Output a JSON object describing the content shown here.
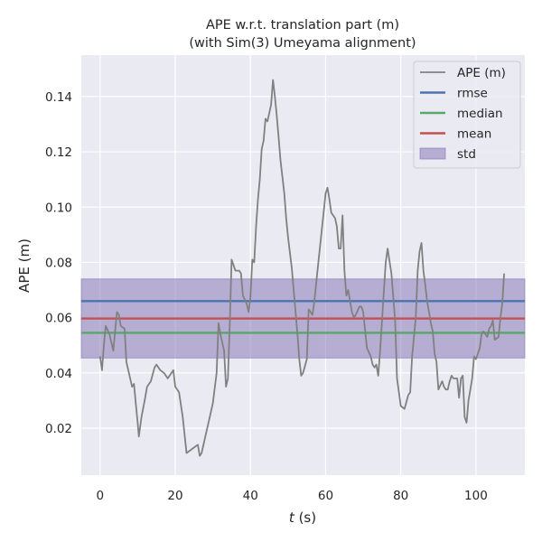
{
  "chart_data": {
    "type": "line",
    "title_line1": "APE w.r.t. translation part (m)",
    "title_line2": "(with Sim(3) Umeyama alignment)",
    "xlabel_italic": "t",
    "xlabel_rest": " (s)",
    "ylabel": "APE (m)",
    "xlim": [
      -5,
      113
    ],
    "ylim": [
      0.003,
      0.155
    ],
    "xticks": [
      0,
      20,
      40,
      60,
      80,
      100
    ],
    "yticks": [
      0.02,
      0.04,
      0.06,
      0.08,
      0.1,
      0.12,
      0.14
    ],
    "ytick_labels": [
      "0.02",
      "0.04",
      "0.06",
      "0.08",
      "0.10",
      "0.12",
      "0.14"
    ],
    "legend_position": "upper right",
    "grid": true,
    "series": [
      {
        "name": "APE (m)",
        "color": "#808080",
        "points": [
          [
            0,
            0.046
          ],
          [
            0.5,
            0.041
          ],
          [
            1,
            0.05
          ],
          [
            1.5,
            0.057
          ],
          [
            2.5,
            0.054
          ],
          [
            3.5,
            0.048
          ],
          [
            4,
            0.055
          ],
          [
            4.5,
            0.062
          ],
          [
            5,
            0.061
          ],
          [
            5.5,
            0.057
          ],
          [
            6.5,
            0.056
          ],
          [
            7,
            0.044
          ],
          [
            7.5,
            0.041
          ],
          [
            8.5,
            0.035
          ],
          [
            9,
            0.036
          ],
          [
            9.5,
            0.029
          ],
          [
            10,
            0.022
          ],
          [
            10.3,
            0.017
          ],
          [
            11,
            0.024
          ],
          [
            12,
            0.031
          ],
          [
            12.5,
            0.035
          ],
          [
            13.5,
            0.037
          ],
          [
            14.5,
            0.042
          ],
          [
            15,
            0.043
          ],
          [
            16,
            0.041
          ],
          [
            17,
            0.04
          ],
          [
            18,
            0.038
          ],
          [
            19.5,
            0.041
          ],
          [
            20,
            0.035
          ],
          [
            21,
            0.033
          ],
          [
            22,
            0.024
          ],
          [
            23,
            0.011
          ],
          [
            24,
            0.012
          ],
          [
            25,
            0.013
          ],
          [
            26,
            0.014
          ],
          [
            26.5,
            0.01
          ],
          [
            27,
            0.011
          ],
          [
            28,
            0.017
          ],
          [
            29,
            0.023
          ],
          [
            30,
            0.029
          ],
          [
            31,
            0.04
          ],
          [
            31.5,
            0.058
          ],
          [
            32,
            0.054
          ],
          [
            33,
            0.048
          ],
          [
            33.5,
            0.035
          ],
          [
            34,
            0.038
          ],
          [
            34.5,
            0.058
          ],
          [
            35,
            0.081
          ],
          [
            36,
            0.077
          ],
          [
            37,
            0.077
          ],
          [
            37.5,
            0.076
          ],
          [
            38,
            0.068
          ],
          [
            39,
            0.065
          ],
          [
            39.5,
            0.062
          ],
          [
            40,
            0.067
          ],
          [
            40.5,
            0.081
          ],
          [
            41,
            0.08
          ],
          [
            41.5,
            0.093
          ],
          [
            42,
            0.103
          ],
          [
            42.5,
            0.11
          ],
          [
            43,
            0.121
          ],
          [
            43.5,
            0.124
          ],
          [
            44,
            0.132
          ],
          [
            44.5,
            0.131
          ],
          [
            45,
            0.134
          ],
          [
            45.5,
            0.137
          ],
          [
            46,
            0.146
          ],
          [
            46.5,
            0.14
          ],
          [
            47,
            0.133
          ],
          [
            47.5,
            0.125
          ],
          [
            48,
            0.117
          ],
          [
            48.5,
            0.111
          ],
          [
            49,
            0.105
          ],
          [
            49.5,
            0.096
          ],
          [
            50,
            0.089
          ],
          [
            51,
            0.078
          ],
          [
            52,
            0.062
          ],
          [
            52.5,
            0.054
          ],
          [
            53,
            0.045
          ],
          [
            53.5,
            0.039
          ],
          [
            54,
            0.04
          ],
          [
            55,
            0.045
          ],
          [
            55.5,
            0.063
          ],
          [
            56.5,
            0.061
          ],
          [
            57,
            0.066
          ],
          [
            58,
            0.079
          ],
          [
            59,
            0.092
          ],
          [
            60,
            0.105
          ],
          [
            60.5,
            0.107
          ],
          [
            61,
            0.103
          ],
          [
            61.5,
            0.098
          ],
          [
            62.5,
            0.096
          ],
          [
            63,
            0.093
          ],
          [
            63.5,
            0.085
          ],
          [
            64,
            0.085
          ],
          [
            64.5,
            0.097
          ],
          [
            65,
            0.077
          ],
          [
            65.5,
            0.068
          ],
          [
            66,
            0.07
          ],
          [
            66.5,
            0.066
          ],
          [
            67,
            0.062
          ],
          [
            67.5,
            0.06
          ],
          [
            68,
            0.061
          ],
          [
            69,
            0.064
          ],
          [
            69.5,
            0.064
          ],
          [
            70,
            0.062
          ],
          [
            71,
            0.049
          ],
          [
            72,
            0.046
          ],
          [
            72.5,
            0.043
          ],
          [
            73,
            0.042
          ],
          [
            73.5,
            0.043
          ],
          [
            74,
            0.039
          ],
          [
            74.5,
            0.048
          ],
          [
            75,
            0.059
          ],
          [
            76,
            0.08
          ],
          [
            76.5,
            0.085
          ],
          [
            77.5,
            0.076
          ],
          [
            78.5,
            0.059
          ],
          [
            79,
            0.038
          ],
          [
            80,
            0.028
          ],
          [
            81,
            0.027
          ],
          [
            82,
            0.032
          ],
          [
            82.5,
            0.033
          ],
          [
            83,
            0.046
          ],
          [
            84,
            0.06
          ],
          [
            84.5,
            0.077
          ],
          [
            85,
            0.084
          ],
          [
            85.5,
            0.087
          ],
          [
            86,
            0.077
          ],
          [
            86.5,
            0.072
          ],
          [
            87,
            0.066
          ],
          [
            88,
            0.058
          ],
          [
            88.5,
            0.055
          ],
          [
            89,
            0.047
          ],
          [
            89.5,
            0.044
          ],
          [
            90,
            0.034
          ],
          [
            91,
            0.037
          ],
          [
            91.5,
            0.035
          ],
          [
            92,
            0.034
          ],
          [
            92.5,
            0.034
          ],
          [
            93,
            0.037
          ],
          [
            93.5,
            0.039
          ],
          [
            94,
            0.038
          ],
          [
            95,
            0.038
          ],
          [
            95.5,
            0.031
          ],
          [
            96,
            0.038
          ],
          [
            96.5,
            0.039
          ],
          [
            97,
            0.024
          ],
          [
            97.5,
            0.022
          ],
          [
            98,
            0.03
          ],
          [
            98.5,
            0.034
          ],
          [
            99,
            0.038
          ],
          [
            99.5,
            0.046
          ],
          [
            100,
            0.045
          ],
          [
            101,
            0.049
          ],
          [
            101.5,
            0.054
          ],
          [
            102,
            0.055
          ],
          [
            103,
            0.053
          ],
          [
            103.5,
            0.056
          ],
          [
            104,
            0.057
          ],
          [
            104.5,
            0.059
          ],
          [
            105,
            0.052
          ],
          [
            106,
            0.053
          ],
          [
            106.5,
            0.06
          ],
          [
            107,
            0.065
          ],
          [
            107.5,
            0.076
          ]
        ]
      },
      {
        "name": "rmse",
        "color": "#4c72b0",
        "value": 0.066
      },
      {
        "name": "median",
        "color": "#55a868",
        "value": 0.0545
      },
      {
        "name": "mean",
        "color": "#c44e52",
        "value": 0.0597
      },
      {
        "name": "std",
        "color": "#8172b2",
        "range": [
          0.0454,
          0.074
        ]
      }
    ]
  }
}
